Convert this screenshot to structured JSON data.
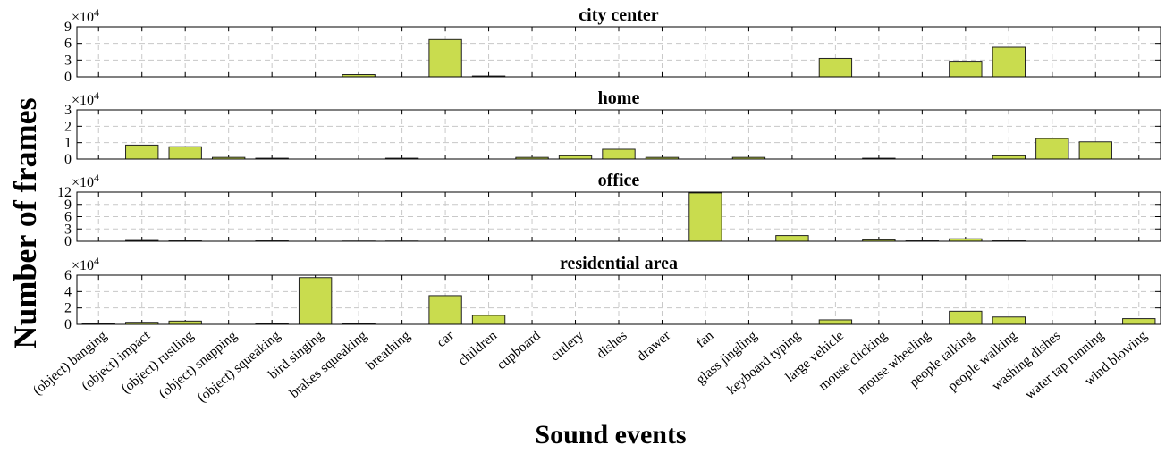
{
  "chart_data": [
    {
      "type": "bar",
      "title": "city center",
      "ylim": [
        0,
        9
      ],
      "yticks": [
        0,
        3,
        6,
        9
      ],
      "multiplier": "×10",
      "exponent": "4",
      "grid": true,
      "categories": [
        "(object) banging",
        "(object) impact",
        "(object) rustling",
        "(object) snapping",
        "(object) squeaking",
        "bird singing",
        "brakes squeaking",
        "breathing",
        "car",
        "children",
        "cupboard",
        "cutlery",
        "dishes",
        "drawer",
        "fan",
        "glass jingling",
        "keyboard typing",
        "large vehicle",
        "mouse clicking",
        "mouse wheeling",
        "people talking",
        "people walking",
        "washing dishes",
        "water tap running",
        "wind blowing"
      ],
      "values": [
        0,
        0,
        0,
        0,
        0,
        0,
        0.4,
        0,
        6.7,
        0.15,
        0,
        0,
        0,
        0,
        0,
        0,
        0,
        3.3,
        0,
        0,
        2.8,
        5.3,
        0,
        0,
        0
      ]
    },
    {
      "type": "bar",
      "title": "home",
      "ylim": [
        0,
        3
      ],
      "yticks": [
        0,
        1,
        2,
        3
      ],
      "multiplier": "×10",
      "exponent": "4",
      "grid": true,
      "categories": [
        "(object) banging",
        "(object) impact",
        "(object) rustling",
        "(object) snapping",
        "(object) squeaking",
        "bird singing",
        "brakes squeaking",
        "breathing",
        "car",
        "children",
        "cupboard",
        "cutlery",
        "dishes",
        "drawer",
        "fan",
        "glass jingling",
        "keyboard typing",
        "large vehicle",
        "mouse clicking",
        "mouse wheeling",
        "people talking",
        "people walking",
        "washing dishes",
        "water tap running",
        "wind blowing"
      ],
      "values": [
        0,
        0.85,
        0.75,
        0.1,
        0.05,
        0,
        0,
        0.05,
        0,
        0,
        0.1,
        0.2,
        0.6,
        0.1,
        0,
        0.1,
        0,
        0,
        0.05,
        0,
        0,
        0.2,
        1.25,
        1.05,
        0
      ]
    },
    {
      "type": "bar",
      "title": "office",
      "ylim": [
        0,
        12
      ],
      "yticks": [
        0,
        3,
        6,
        9,
        12
      ],
      "multiplier": "×10",
      "exponent": "4",
      "grid": true,
      "categories": [
        "(object) banging",
        "(object) impact",
        "(object) rustling",
        "(object) snapping",
        "(object) squeaking",
        "bird singing",
        "brakes squeaking",
        "breathing",
        "car",
        "children",
        "cupboard",
        "cutlery",
        "dishes",
        "drawer",
        "fan",
        "glass jingling",
        "keyboard typing",
        "large vehicle",
        "mouse clicking",
        "mouse wheeling",
        "people talking",
        "people walking",
        "washing dishes",
        "water tap running",
        "wind blowing"
      ],
      "values": [
        0,
        0.2,
        0.1,
        0,
        0.1,
        0,
        0.05,
        0.05,
        0,
        0,
        0,
        0,
        0,
        0,
        11.8,
        0,
        1.4,
        0,
        0.35,
        0.1,
        0.6,
        0.1,
        0,
        0,
        0
      ]
    },
    {
      "type": "bar",
      "title": "residential area",
      "ylim": [
        0,
        6
      ],
      "yticks": [
        0,
        2,
        4,
        6
      ],
      "multiplier": "×10",
      "exponent": "4",
      "grid": true,
      "categories": [
        "(object) banging",
        "(object) impact",
        "(object) rustling",
        "(object) snapping",
        "(object) squeaking",
        "bird singing",
        "brakes squeaking",
        "breathing",
        "car",
        "children",
        "cupboard",
        "cutlery",
        "dishes",
        "drawer",
        "fan",
        "glass jingling",
        "keyboard typing",
        "large vehicle",
        "mouse clicking",
        "mouse wheeling",
        "people talking",
        "people walking",
        "washing dishes",
        "water tap running",
        "wind blowing"
      ],
      "values": [
        0.1,
        0.25,
        0.4,
        0,
        0.1,
        5.7,
        0.1,
        0,
        3.5,
        1.1,
        0,
        0,
        0,
        0,
        0,
        0,
        0,
        0.55,
        0,
        0,
        1.6,
        0.9,
        0,
        0,
        0.7
      ]
    }
  ],
  "ylabel": "Number of frames",
  "xlabel": "Sound events",
  "colors": {
    "bar_fill": "#c9dc4e",
    "bar_stroke": "#222222",
    "grid": "#c8c8c8"
  }
}
